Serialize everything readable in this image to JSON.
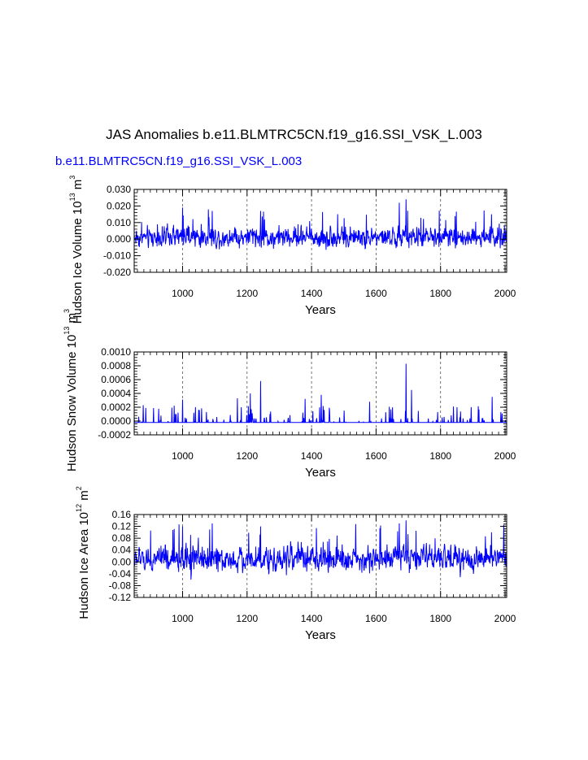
{
  "title": "JAS Anomalies b.e11.BLMTRC5CN.f19_g16.SSI_VSK_L.003",
  "subtitle": "b.e11.BLMTRC5CN.f19_g16.SSI_VSK_L.003",
  "colors": {
    "series": "#0000ff",
    "axes": "#000000",
    "grid": "#555555"
  },
  "chart_data": [
    {
      "type": "line",
      "title": "",
      "xlabel": "Years",
      "ylabel": "Hudson Ice Volume 10",
      "ylabel_exponent": "13",
      "ylabel_unit": "m",
      "ylabel_unit_exponent": "3",
      "xlim": [
        850,
        2005
      ],
      "ylim": [
        -0.02,
        0.03
      ],
      "x_ticks": [
        1000,
        1200,
        1400,
        1600,
        1800,
        2000
      ],
      "x_tick_labels": [
        "1000",
        "1200",
        "1400",
        "1600",
        "1800",
        "2000"
      ],
      "y_ticks": [
        -0.02,
        -0.01,
        0.0,
        0.01,
        0.02,
        0.03
      ],
      "y_tick_labels": [
        "-0.020",
        "-0.010",
        "0.000",
        "0.010",
        "0.020",
        "0.030"
      ],
      "grid": "dashed vertical at major x ticks",
      "series_summary": {
        "x_start": 850,
        "x_end": 2005,
        "typical_min": -0.012,
        "typical_max": 0.014,
        "peak": 0.024,
        "peak_year": 1693,
        "trough": -0.014
      },
      "notable_peaks": [
        [
          1000,
          0.019
        ],
        [
          1092,
          0.017
        ],
        [
          1242,
          0.017
        ],
        [
          1672,
          0.022
        ],
        [
          1693,
          0.024
        ],
        [
          1958,
          0.015
        ]
      ]
    },
    {
      "type": "line",
      "title": "",
      "xlabel": "Years",
      "ylabel": "Hudson Snow Volume 10",
      "ylabel_exponent": "13",
      "ylabel_unit": "m",
      "ylabel_unit_exponent": "3",
      "xlim": [
        850,
        2005
      ],
      "ylim": [
        -0.0002,
        0.001
      ],
      "x_ticks": [
        1000,
        1200,
        1400,
        1600,
        1800,
        2000
      ],
      "x_tick_labels": [
        "1000",
        "1200",
        "1400",
        "1600",
        "1800",
        "2000"
      ],
      "y_ticks": [
        -0.0002,
        0.0,
        0.0002,
        0.0004,
        0.0006,
        0.0008,
        0.001
      ],
      "y_tick_labels": [
        "-0.0002",
        "0.0000",
        "0.0002",
        "0.0004",
        "0.0006",
        "0.0008",
        "0.0010"
      ],
      "grid": "dashed vertical at major x ticks",
      "series_summary": {
        "x_start": 850,
        "x_end": 2005,
        "baseline": -2e-05,
        "peak": 0.00083,
        "peak_year": 1693
      },
      "notable_peaks": [
        [
          878,
          0.00023
        ],
        [
          1000,
          0.00031
        ],
        [
          1170,
          0.00033
        ],
        [
          1210,
          0.0004
        ],
        [
          1242,
          0.00058
        ],
        [
          1380,
          0.00032
        ],
        [
          1430,
          0.00038
        ],
        [
          1580,
          0.00028
        ],
        [
          1693,
          0.00083
        ],
        [
          1710,
          0.00045
        ],
        [
          1960,
          0.00035
        ]
      ]
    },
    {
      "type": "line",
      "title": "",
      "xlabel": "Years",
      "ylabel": "Hudson Ice Area 10",
      "ylabel_exponent": "12",
      "ylabel_unit": "m",
      "ylabel_unit_exponent": "2",
      "xlim": [
        850,
        2005
      ],
      "ylim": [
        -0.12,
        0.16
      ],
      "x_ticks": [
        1000,
        1200,
        1400,
        1600,
        1800,
        2000
      ],
      "x_tick_labels": [
        "1000",
        "1200",
        "1400",
        "1600",
        "1800",
        "2000"
      ],
      "y_ticks": [
        -0.12,
        -0.08,
        -0.04,
        0.0,
        0.04,
        0.08,
        0.12,
        0.16
      ],
      "y_tick_labels": [
        "-0.12",
        "-0.08",
        "-0.04",
        "0.00",
        "0.04",
        "0.08",
        "0.12",
        "0.16"
      ],
      "grid": "dashed vertical at major x ticks",
      "series_summary": {
        "x_start": 850,
        "x_end": 2005,
        "typical_min": -0.08,
        "typical_max": 0.1,
        "peak": 0.14,
        "peak_year": 1693,
        "trough": -0.09
      },
      "notable_peaks": [
        [
          1000,
          0.12
        ],
        [
          1092,
          0.13
        ],
        [
          1242,
          0.12
        ],
        [
          1672,
          0.13
        ],
        [
          1693,
          0.14
        ],
        [
          1958,
          0.1
        ]
      ]
    }
  ]
}
